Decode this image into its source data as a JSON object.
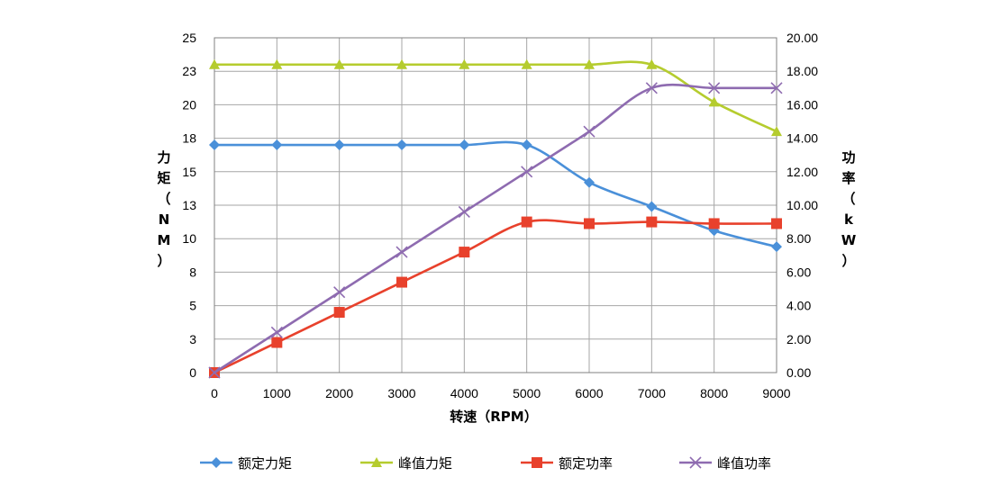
{
  "chart_data": {
    "type": "line",
    "x": [
      0,
      1000,
      2000,
      3000,
      4000,
      5000,
      6000,
      7000,
      8000,
      9000
    ],
    "x_tick_labels": [
      "0",
      "1000",
      "2000",
      "3000",
      "4000",
      "5000",
      "6000",
      "7000",
      "8000",
      "9000"
    ],
    "xlabel": "转速（RPM）",
    "ylabel_left": "力矩（NM）",
    "ylabel_right": "功率（kW）",
    "ylim_left": [
      0,
      25
    ],
    "ylim_right": [
      0,
      20
    ],
    "y_left_tick_labels": [
      "0",
      "3",
      "5",
      "8",
      "10",
      "13",
      "15",
      "18",
      "20",
      "23",
      "25"
    ],
    "y_right_tick_labels": [
      "0.00",
      "2.00",
      "4.00",
      "6.00",
      "8.00",
      "10.00",
      "12.00",
      "14.00",
      "16.00",
      "18.00",
      "20.00"
    ],
    "grid": true,
    "legend_position": "bottom",
    "series": [
      {
        "name": "额定力矩",
        "axis": "left",
        "marker": "diamond",
        "color": "#4A90D9",
        "values": [
          17,
          17,
          17,
          17,
          17,
          17,
          14.2,
          12.4,
          10.6,
          9.4
        ]
      },
      {
        "name": "峰值力矩",
        "axis": "left",
        "marker": "triangle",
        "color": "#B5CC2E",
        "values": [
          23,
          23,
          23,
          23,
          23,
          23,
          23,
          23,
          20.2,
          18
        ]
      },
      {
        "name": "额定功率",
        "axis": "right",
        "marker": "square",
        "color": "#E8412C",
        "values": [
          0,
          1.8,
          3.6,
          5.4,
          7.2,
          9,
          8.9,
          9,
          8.9,
          8.9
        ]
      },
      {
        "name": "峰值功率",
        "axis": "right",
        "marker": "x",
        "color": "#8E6BB0",
        "values": [
          0,
          2.4,
          4.8,
          7.2,
          9.6,
          12,
          14.4,
          17,
          17,
          17
        ]
      }
    ]
  }
}
